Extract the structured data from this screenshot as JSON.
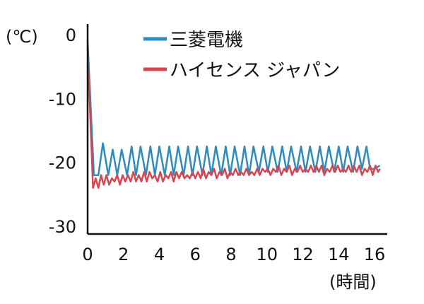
{
  "chart_data": {
    "type": "line",
    "title": "",
    "xlabel": "(時間)",
    "ylabel": "(℃)",
    "xlim": [
      0,
      16
    ],
    "ylim": [
      -30,
      0
    ],
    "x_ticks": [
      0,
      2,
      4,
      6,
      8,
      10,
      12,
      14,
      16
    ],
    "y_ticks": [
      0,
      -10,
      -20,
      -30
    ],
    "grid": false,
    "legend_position": "top-right",
    "series": [
      {
        "name": "三菱電機",
        "color": "#2e8bc0",
        "x": [
          0,
          0.35,
          0.6,
          0.85,
          1.15,
          1.4,
          1.65,
          1.9,
          2.2,
          2.45,
          2.7,
          2.95,
          3.25,
          3.5,
          3.75,
          4.0,
          4.3,
          4.55,
          4.8,
          5.05,
          5.35,
          5.6,
          5.85,
          6.1,
          6.4,
          6.65,
          6.9,
          7.15,
          7.45,
          7.7,
          7.95,
          8.2,
          8.5,
          8.75,
          9.0,
          9.25,
          9.55,
          9.8,
          10.05,
          10.3,
          10.6,
          10.85,
          11.1,
          11.35,
          11.65,
          11.9,
          12.15,
          12.4,
          12.7,
          12.95,
          13.2,
          13.45,
          13.75,
          14.0,
          14.25,
          14.5,
          14.8,
          15.05,
          15.3,
          15.55,
          15.75,
          16.0,
          16.3
        ],
        "y": [
          -1,
          -22,
          -22,
          -17,
          -22,
          -18,
          -22,
          -18,
          -22,
          -17.5,
          -22,
          -17.5,
          -22,
          -17.5,
          -22,
          -17.5,
          -22,
          -17.5,
          -22,
          -17.5,
          -22,
          -17.5,
          -22,
          -17.5,
          -22,
          -17.5,
          -22,
          -17.5,
          -22,
          -17.5,
          -22,
          -17.5,
          -22,
          -17.5,
          -22,
          -17.5,
          -21.5,
          -17.5,
          -21.5,
          -17.5,
          -21.5,
          -17.5,
          -21.5,
          -17.5,
          -21.5,
          -17.5,
          -21.5,
          -17.5,
          -21.5,
          -17.5,
          -21.5,
          -17.5,
          -21.5,
          -17.5,
          -21.5,
          -17.5,
          -21.5,
          -17.5,
          -21,
          -17.5,
          -21,
          -21,
          -20.5
        ]
      },
      {
        "name": "ハイセンス ジャパン",
        "color": "#d64550",
        "x": [
          0,
          0.3,
          0.45,
          0.6,
          0.75,
          0.9,
          1.05,
          1.2,
          1.35,
          1.5,
          1.65,
          1.8,
          1.95,
          2.1,
          2.25,
          2.4,
          2.55,
          2.7,
          2.85,
          3.0,
          3.15,
          3.3,
          3.45,
          3.6,
          3.75,
          3.9,
          4.05,
          4.2,
          4.35,
          4.5,
          4.65,
          4.8,
          4.95,
          5.1,
          5.25,
          5.4,
          5.55,
          5.7,
          5.85,
          6.0,
          6.15,
          6.3,
          6.45,
          6.6,
          6.75,
          6.9,
          7.05,
          7.2,
          7.35,
          7.5,
          7.65,
          7.8,
          7.95,
          8.1,
          8.25,
          8.4,
          8.55,
          8.7,
          8.85,
          9.0,
          9.15,
          9.3,
          9.45,
          9.6,
          9.75,
          9.9,
          10.05,
          10.2,
          10.35,
          10.5,
          10.65,
          10.8,
          10.95,
          11.1,
          11.25,
          11.4,
          11.55,
          11.7,
          11.85,
          12.0,
          12.15,
          12.3,
          12.45,
          12.6,
          12.75,
          12.9,
          13.05,
          13.2,
          13.35,
          13.5,
          13.65,
          13.8,
          13.95,
          14.1,
          14.25,
          14.4,
          14.55,
          14.7,
          14.85,
          15.0,
          15.15,
          15.3,
          15.45,
          15.6,
          15.75,
          15.9,
          16.05,
          16.2,
          16.3
        ],
        "y": [
          -2,
          -24,
          -22.5,
          -24,
          -22,
          -23.5,
          -22,
          -23.5,
          -22.5,
          -23,
          -22,
          -23.5,
          -22,
          -23,
          -22,
          -23,
          -21.5,
          -23,
          -22,
          -23,
          -21.5,
          -23,
          -21.5,
          -22.5,
          -22,
          -23,
          -21.5,
          -23,
          -22,
          -22.5,
          -21.5,
          -23,
          -21.5,
          -22.5,
          -21.5,
          -22.5,
          -22,
          -22.5,
          -21.5,
          -22.5,
          -21.5,
          -22.5,
          -21,
          -22.5,
          -21.5,
          -22,
          -21,
          -22.5,
          -21.5,
          -22,
          -21,
          -22.5,
          -21.5,
          -22,
          -21,
          -22,
          -21.5,
          -22,
          -21,
          -22,
          -21.5,
          -22,
          -21,
          -22,
          -21,
          -21.5,
          -21,
          -22,
          -21,
          -21.5,
          -20.5,
          -22,
          -21,
          -21.5,
          -20.5,
          -22,
          -21,
          -21.5,
          -20.5,
          -21.5,
          -21,
          -21.5,
          -20.5,
          -21.5,
          -20.5,
          -21.5,
          -20.5,
          -22,
          -21,
          -21.5,
          -20.5,
          -21.5,
          -20.5,
          -21.5,
          -21,
          -21.5,
          -20.5,
          -21.5,
          -20.5,
          -21.5,
          -20.5,
          -22,
          -21,
          -21.5,
          -20.5,
          -22,
          -20.5,
          -21.5,
          -21
        ]
      }
    ]
  }
}
